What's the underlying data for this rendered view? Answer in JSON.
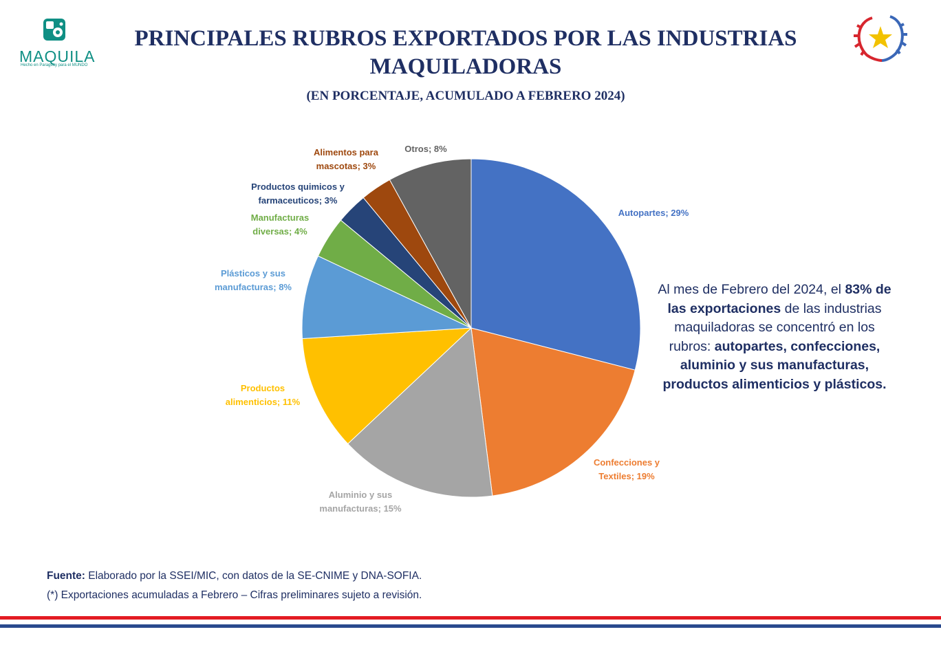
{
  "logo": {
    "icon": "puzzle-gear-icon",
    "wordmark": "MAQUILA",
    "tagline": "Hecho en Paraguay para el MUNDO"
  },
  "emblem": {
    "icon": "paraguay-star-laurel-icon"
  },
  "header": {
    "title_line1": "PRINCIPALES RUBROS EXPORTADOS POR LAS INDUSTRIAS",
    "title_line2": "MAQUILADORAS",
    "subtitle": "(EN PORCENTAJE, ACUMULADO A FEBRERO 2024)"
  },
  "chart_data": {
    "type": "pie",
    "title": "",
    "slices": [
      {
        "label": "Autopartes; 29%",
        "value": 29,
        "color": "#4472C4"
      },
      {
        "label": "Confecciones y Textiles; 19%",
        "value": 19,
        "color": "#ED7D31"
      },
      {
        "label": "Aluminio y sus manufacturas; 15%",
        "value": 15,
        "color": "#A5A5A5"
      },
      {
        "label": "Productos alimenticios; 11%",
        "value": 11,
        "color": "#FFC000"
      },
      {
        "label": "Plásticos y sus manufacturas; 8%",
        "value": 8,
        "color": "#5B9BD5"
      },
      {
        "label": "Manufacturas diversas; 4%",
        "value": 4,
        "color": "#70AD47"
      },
      {
        "label": "Productos quimicos y farmaceuticos; 3%",
        "value": 3,
        "color": "#264478"
      },
      {
        "label": "Alimentos para mascotas; 3%",
        "value": 3,
        "color": "#9E480E"
      },
      {
        "label": "Otros; 8%",
        "value": 8,
        "color": "#636363"
      }
    ],
    "label_lines": [
      [
        "Autopartes; 29%"
      ],
      [
        "Confecciones y",
        "Textiles; 19%"
      ],
      [
        "Aluminio y sus",
        "manufacturas; 15%"
      ],
      [
        "Productos",
        "alimenticios; 11%"
      ],
      [
        "Plásticos y sus",
        "manufacturas; 8%"
      ],
      [
        "Manufacturas",
        "diversas; 4%"
      ],
      [
        "Productos quimicos y",
        "farmaceuticos; 3%"
      ],
      [
        "Alimentos para",
        "mascotas; 3%"
      ],
      [
        "Otros; 8%"
      ]
    ],
    "start": "top, clockwise",
    "legend": "none (labels outside slices)"
  },
  "note": {
    "p1": "Al mes de Febrero del 2024, el ",
    "b1": "83% de las exportaciones",
    "p2": " de las industrias maquiladoras se concentró en los rubros: ",
    "b2": "autopartes, confecciones, aluminio y sus manufacturas, productos alimenticios y plásticos."
  },
  "footer": {
    "source_label": "Fuente:",
    "source_text": " Elaborado por la SSEI/MIC, con datos de la SE-CNIME y DNA-SOFIA.",
    "footnote": "(*) Exportaciones acumuladas a Febrero – Cifras preliminares sujeto a revisión."
  }
}
